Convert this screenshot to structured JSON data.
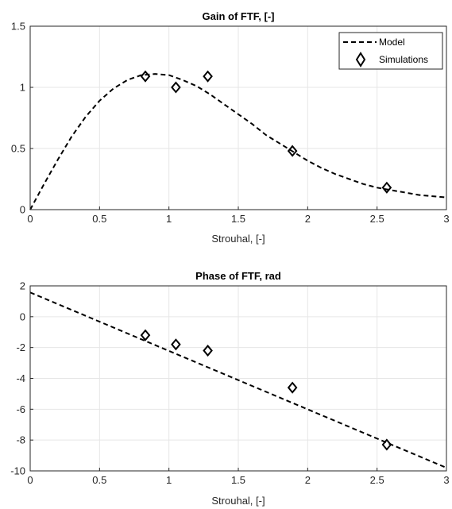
{
  "chart_data": [
    {
      "type": "line",
      "title": "Gain of FTF, [-]",
      "xlabel": "Strouhal, [-]",
      "ylabel": "",
      "xlim": [
        0,
        3
      ],
      "ylim": [
        0,
        1.5
      ],
      "xticks": [
        "0",
        "0.5",
        "1",
        "1.5",
        "2",
        "2.5",
        "3"
      ],
      "yticks": [
        "0",
        "0.5",
        "1",
        "1.5"
      ],
      "grid": true,
      "legend": {
        "position": "top-right",
        "entries": [
          "Model",
          "Simulations"
        ]
      },
      "series": [
        {
          "name": "Model",
          "style": "dashed-line",
          "x": [
            0,
            0.1,
            0.2,
            0.3,
            0.4,
            0.5,
            0.6,
            0.7,
            0.8,
            0.9,
            1.0,
            1.1,
            1.2,
            1.3,
            1.4,
            1.5,
            1.6,
            1.7,
            1.8,
            1.9,
            2.0,
            2.1,
            2.2,
            2.3,
            2.4,
            2.5,
            2.6,
            2.7,
            2.8,
            2.9,
            3.0
          ],
          "y": [
            0,
            0.21,
            0.41,
            0.6,
            0.76,
            0.89,
            0.99,
            1.06,
            1.1,
            1.11,
            1.1,
            1.06,
            1.01,
            0.94,
            0.86,
            0.78,
            0.7,
            0.61,
            0.54,
            0.47,
            0.4,
            0.34,
            0.29,
            0.25,
            0.21,
            0.18,
            0.16,
            0.14,
            0.12,
            0.11,
            0.1
          ]
        },
        {
          "name": "Simulations",
          "style": "diamond-marker",
          "x": [
            0.83,
            1.05,
            1.28,
            1.89,
            2.57
          ],
          "y": [
            1.09,
            1.0,
            1.09,
            0.48,
            0.18
          ]
        }
      ]
    },
    {
      "type": "line",
      "title": "Phase of FTF, rad",
      "xlabel": "Strouhal, [-]",
      "ylabel": "",
      "xlim": [
        0,
        3
      ],
      "ylim": [
        -10,
        2
      ],
      "xticks": [
        "0",
        "0.5",
        "1",
        "1.5",
        "2",
        "2.5",
        "3"
      ],
      "yticks": [
        "-10",
        "-8",
        "-6",
        "-4",
        "-2",
        "0",
        "2"
      ],
      "grid": true,
      "series": [
        {
          "name": "Model",
          "style": "dashed-line",
          "x": [
            0,
            3.0
          ],
          "y": [
            1.57,
            -9.8
          ]
        },
        {
          "name": "Simulations",
          "style": "diamond-marker",
          "x": [
            0.83,
            1.05,
            1.28,
            1.89,
            2.57
          ],
          "y": [
            -1.2,
            -1.8,
            -2.2,
            -4.6,
            -8.3
          ]
        }
      ]
    }
  ]
}
